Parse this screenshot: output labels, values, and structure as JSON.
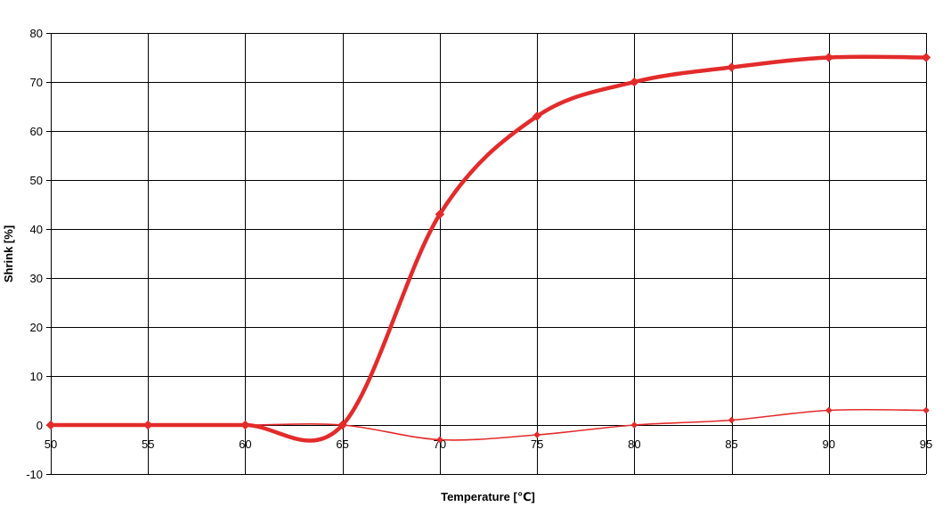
{
  "chart_data": {
    "type": "line",
    "title": "",
    "xlabel": "Temperature [℃]",
    "ylabel": "Shrink [%]",
    "x": [
      50,
      55,
      60,
      65,
      70,
      75,
      80,
      85,
      90,
      95
    ],
    "xlim": [
      50,
      95
    ],
    "ylim": [
      -10,
      80
    ],
    "x_ticks": [
      "50",
      "55",
      "60",
      "65",
      "70",
      "75",
      "80",
      "85",
      "90",
      "95"
    ],
    "y_ticks": [
      "-10",
      "0",
      "10",
      "20",
      "30",
      "40",
      "50",
      "60",
      "70",
      "80"
    ],
    "grid": true,
    "legend": "none",
    "series": [
      {
        "values": [
          0,
          0,
          0,
          0,
          43,
          63,
          70,
          73,
          75,
          75
        ],
        "color": "#e32b2b",
        "weight": "thick",
        "marker": "diamond",
        "smooth": true
      },
      {
        "values": [
          0,
          0,
          0,
          0,
          -3,
          -2,
          0,
          1,
          3,
          3
        ],
        "color": "#e32b2b",
        "weight": "thin",
        "marker": "diamond",
        "smooth": true
      }
    ]
  }
}
